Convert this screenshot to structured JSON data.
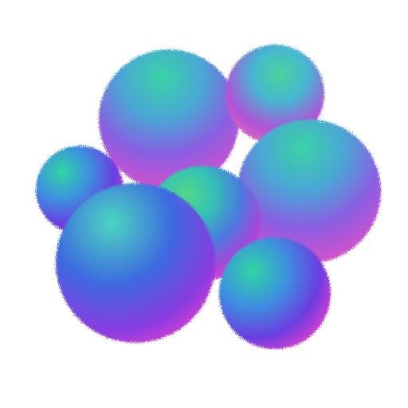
{
  "scene": {
    "subject": "fluffy-blob-cluster",
    "background_color": "#ffffff",
    "palette": {
      "teal": "#2fd6a3",
      "cyan": "#2fb8d6",
      "blue": "#3d5fe0",
      "violet": "#8a3be0",
      "magenta": "#df3ed6",
      "pink": "#f06ab0",
      "green": "#52d886"
    }
  }
}
